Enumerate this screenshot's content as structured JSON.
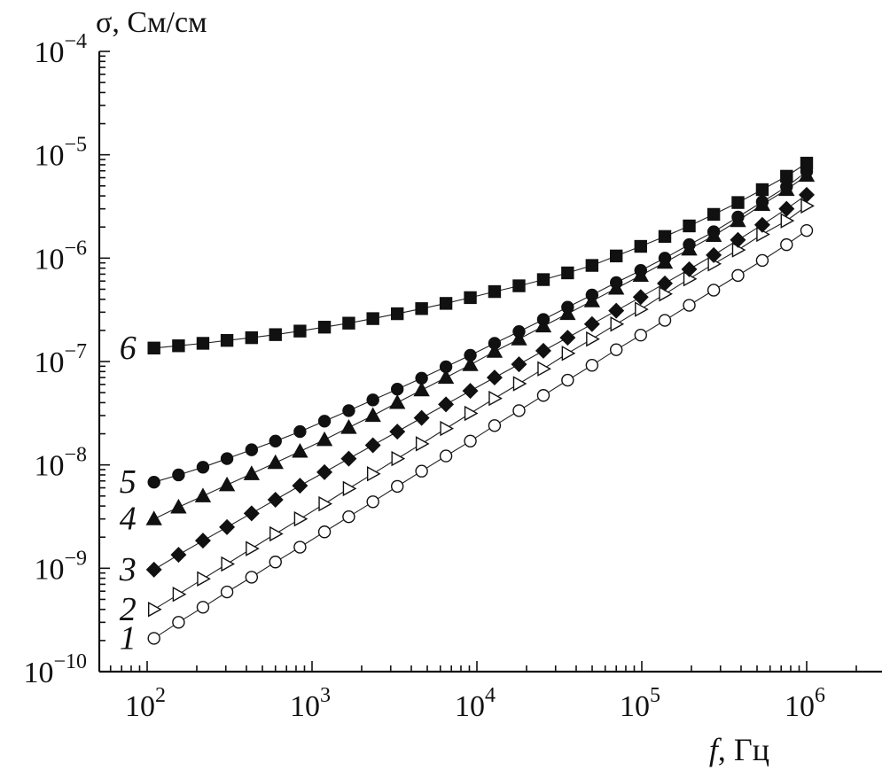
{
  "chart_data": {
    "type": "scatter",
    "xscale": "log",
    "yscale": "log",
    "xlim": [
      50,
      3000000
    ],
    "ylim": [
      1e-10,
      0.0001
    ],
    "grid": false,
    "ylabel": "σ, См/см",
    "xlabel_var": "f",
    "xlabel_unit": ", Гц",
    "xtick_labels": [
      {
        "base": "10",
        "exp": "2",
        "value": 100
      },
      {
        "base": "10",
        "exp": "3",
        "value": 1000
      },
      {
        "base": "10",
        "exp": "4",
        "value": 10000
      },
      {
        "base": "10",
        "exp": "5",
        "value": 100000
      },
      {
        "base": "10",
        "exp": "6",
        "value": 1000000
      }
    ],
    "ytick_labels": [
      {
        "base": "10",
        "exp": "−10",
        "value": 1e-10
      },
      {
        "base": "10",
        "exp": "−9",
        "value": 1e-09
      },
      {
        "base": "10",
        "exp": "−8",
        "value": 1e-08
      },
      {
        "base": "10",
        "exp": "−7",
        "value": 1e-07
      },
      {
        "base": "10",
        "exp": "−6",
        "value": 1e-06
      },
      {
        "base": "10",
        "exp": "−5",
        "value": 1e-05
      },
      {
        "base": "10",
        "exp": "−4",
        "value": 0.0001
      }
    ],
    "x": [
      110,
      155,
      218,
      305,
      430,
      600,
      845,
      1190,
      1670,
      2340,
      3290,
      4620,
      6490,
      9120,
      12800,
      18000,
      25300,
      35500,
      49900,
      70000,
      98500,
      138000,
      194000,
      273000,
      383000,
      538000,
      755000,
      1000000
    ],
    "series": [
      {
        "label": "1",
        "marker": "circle-open",
        "values": [
          2.1e-10,
          3e-10,
          4.2e-10,
          5.9e-10,
          8.2e-10,
          1.15e-09,
          1.6e-09,
          2.25e-09,
          3.15e-09,
          4.4e-09,
          6.2e-09,
          8.7e-09,
          1.22e-08,
          1.7e-08,
          2.4e-08,
          3.35e-08,
          4.7e-08,
          6.6e-08,
          9.2e-08,
          1.3e-07,
          1.8e-07,
          2.5e-07,
          3.5e-07,
          4.9e-07,
          6.8e-07,
          9.5e-07,
          1.35e-06,
          1.85e-06
        ]
      },
      {
        "label": "2",
        "marker": "triangle-right-open",
        "values": [
          4e-10,
          5.6e-10,
          7.9e-10,
          1.1e-09,
          1.55e-09,
          2.15e-09,
          3e-09,
          4.2e-09,
          5.9e-09,
          8.2e-09,
          1.15e-08,
          1.6e-08,
          2.25e-08,
          3.15e-08,
          4.4e-08,
          6.1e-08,
          8.5e-08,
          1.2e-07,
          1.65e-07,
          2.3e-07,
          3.2e-07,
          4.5e-07,
          6.3e-07,
          8.8e-07,
          1.2e-06,
          1.7e-06,
          2.3e-06,
          3.2e-06
        ]
      },
      {
        "label": "3",
        "marker": "diamond-filled",
        "values": [
          9.7e-10,
          1.35e-09,
          1.85e-09,
          2.5e-09,
          3.4e-09,
          4.6e-09,
          6.3e-09,
          8.5e-09,
          1.15e-08,
          1.55e-08,
          2.1e-08,
          2.85e-08,
          3.85e-08,
          5.2e-08,
          7e-08,
          9.4e-08,
          1.27e-07,
          1.7e-07,
          2.3e-07,
          3.1e-07,
          4.2e-07,
          5.7e-07,
          7.8e-07,
          1.07e-06,
          1.5e-06,
          2.1e-06,
          3e-06,
          4.1e-06
        ]
      },
      {
        "label": "4",
        "marker": "triangle-up-filled",
        "values": [
          3e-09,
          3.9e-09,
          5e-09,
          6.4e-09,
          8.2e-09,
          1.05e-08,
          1.35e-08,
          1.75e-08,
          2.3e-08,
          3e-08,
          4e-08,
          5.3e-08,
          7e-08,
          9.3e-08,
          1.25e-07,
          1.65e-07,
          2.2e-07,
          2.9e-07,
          3.85e-07,
          5.1e-07,
          6.8e-07,
          9.1e-07,
          1.22e-06,
          1.65e-06,
          2.3e-06,
          3.3e-06,
          4.6e-06,
          6.3e-06
        ]
      },
      {
        "label": "5",
        "marker": "circle-filled",
        "values": [
          6.8e-09,
          8e-09,
          9.5e-09,
          1.15e-08,
          1.4e-08,
          1.7e-08,
          2.1e-08,
          2.65e-08,
          3.35e-08,
          4.25e-08,
          5.4e-08,
          6.9e-08,
          8.9e-08,
          1.15e-07,
          1.5e-07,
          1.95e-07,
          2.55e-07,
          3.35e-07,
          4.4e-07,
          5.8e-07,
          7.6e-07,
          1e-06,
          1.35e-06,
          1.8e-06,
          2.5e-06,
          3.5e-06,
          4.9e-06,
          6.9e-06
        ]
      },
      {
        "label": "6",
        "marker": "square-filled",
        "values": [
          1.35e-07,
          1.42e-07,
          1.5e-07,
          1.6e-07,
          1.7e-07,
          1.82e-07,
          1.97e-07,
          2.15e-07,
          2.35e-07,
          2.6e-07,
          2.9e-07,
          3.25e-07,
          3.65e-07,
          4.15e-07,
          4.75e-07,
          5.4e-07,
          6.2e-07,
          7.2e-07,
          8.5e-07,
          1.05e-06,
          1.3e-06,
          1.62e-06,
          2.05e-06,
          2.65e-06,
          3.45e-06,
          4.6e-06,
          6.2e-06,
          8.3e-06
        ]
      }
    ]
  }
}
